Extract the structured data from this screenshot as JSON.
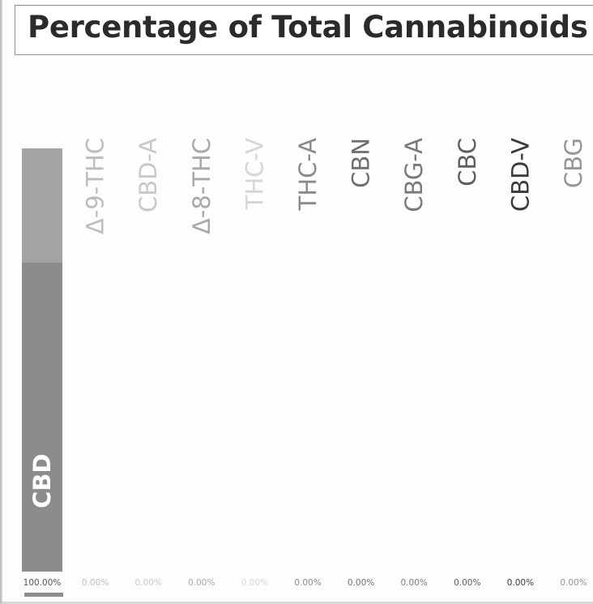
{
  "chart_data": {
    "type": "bar",
    "title": "Percentage of Total Cannabinoids",
    "orientation": "vertical",
    "stacked": true,
    "ylim": [
      0,
      100
    ],
    "categories": [
      "CBD",
      "Δ-9-THC",
      "CBD-A",
      "Δ-8-THC",
      "THC-V",
      "THC-A",
      "CBN",
      "CBG-A",
      "CBC",
      "CBD-V",
      "CBG"
    ],
    "values": [
      100.0,
      0.0,
      0.0,
      0.0,
      0.0,
      0.0,
      0.0,
      0.0,
      0.0,
      0.0,
      0.0
    ],
    "value_labels": [
      "100.00%",
      "0.00%",
      "0.00%",
      "0.00%",
      "0.00%",
      "0.00%",
      "0.00%",
      "0.00%",
      "0.00%",
      "0.00%",
      "0.00%"
    ],
    "colors": [
      "#8c8c8c",
      "#bdbdbd",
      "#c8c8c8",
      "#a8a8a8",
      "#d6d6d6",
      "#8a8a8a",
      "#6e6e6e",
      "#7a7a7a",
      "#5e5e5e",
      "#3a3a3a",
      "#969696"
    ],
    "label_colors": [
      "#ffffff",
      "#bdbdbd",
      "#c8c8c8",
      "#a8a8a8",
      "#d6d6d6",
      "#8a8a8a",
      "#6e6e6e",
      "#7a7a7a",
      "#5e5e5e",
      "#3a3a3a",
      "#969696"
    ],
    "legend": "none",
    "grid": false
  }
}
